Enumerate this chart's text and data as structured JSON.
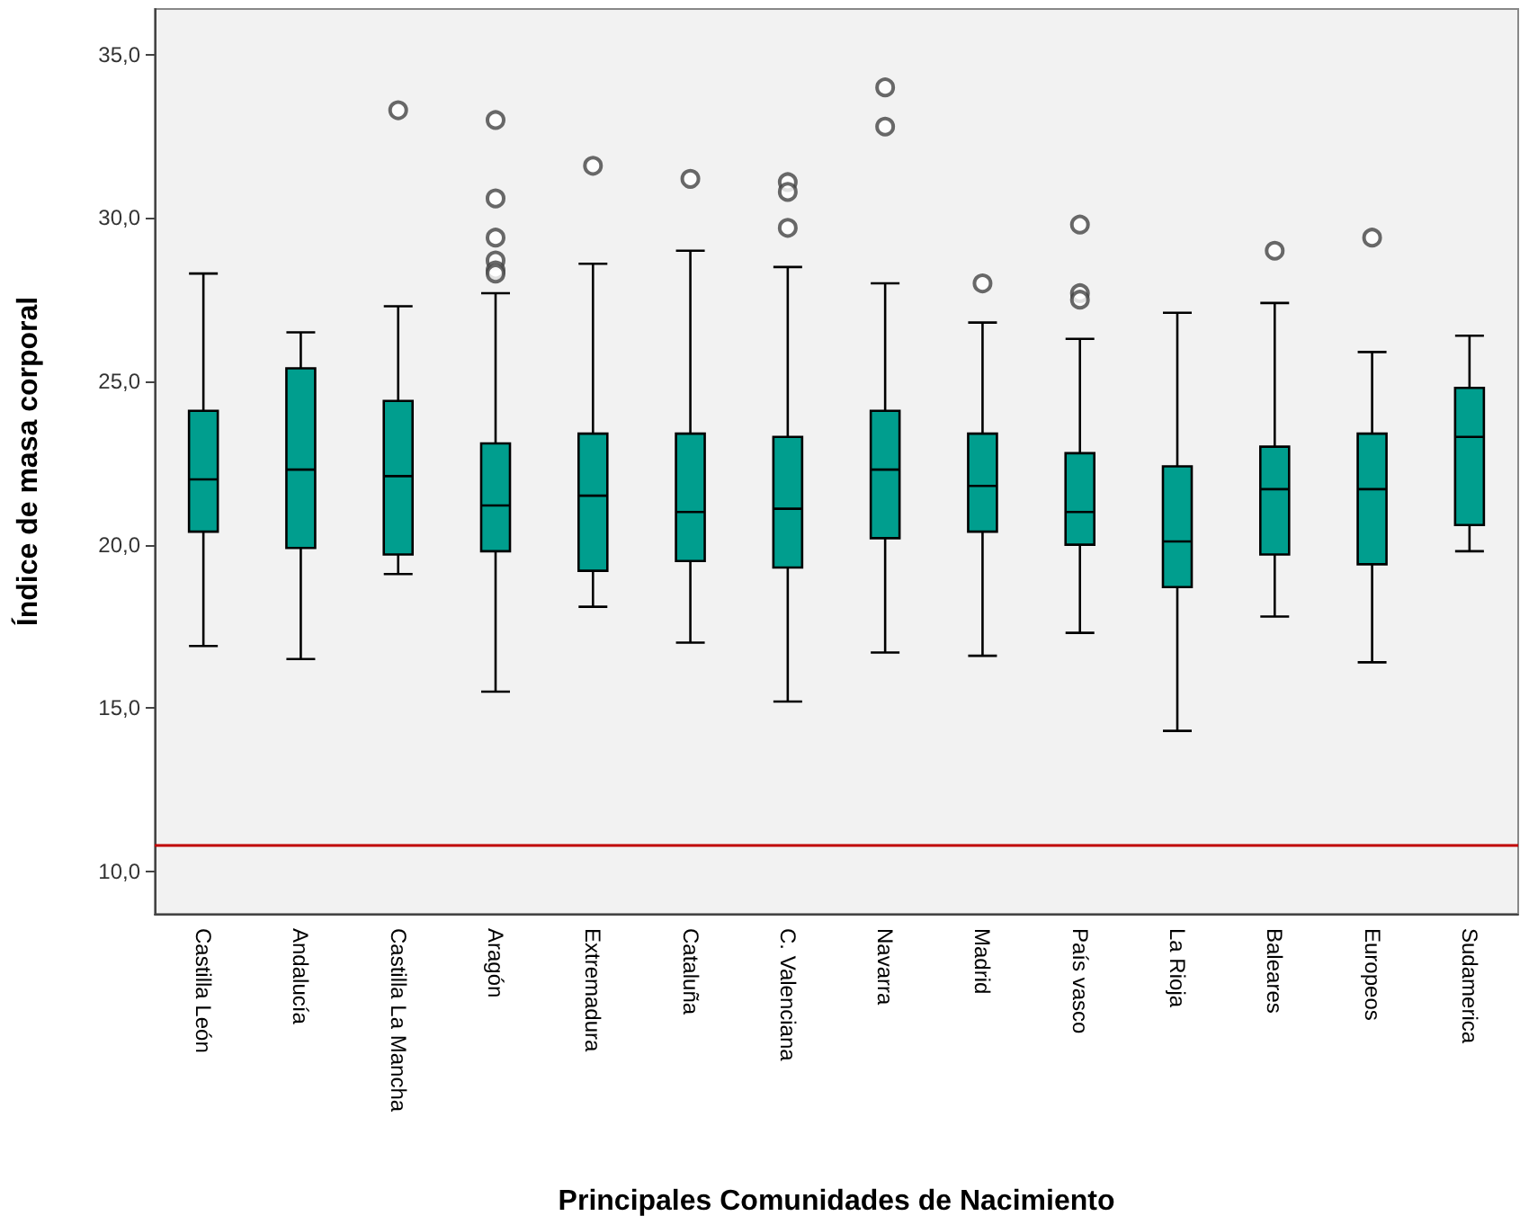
{
  "chart_data": {
    "type": "box",
    "xlabel": "Principales Comunidades de Nacimiento",
    "ylabel": "Índice de masa corporal",
    "categories": [
      "Castilla León",
      "Andalucía",
      "Castilla La Mancha",
      "Aragón",
      "Extremadura",
      "Cataluña",
      "C. Valenciana",
      "Navarra",
      "Madrid",
      "País vasco",
      "La Rioja",
      "Baleares",
      "Europeos",
      "Sudamerica"
    ],
    "color": "#009e8e",
    "boxes": [
      {
        "low": 16.9,
        "q1": 20.4,
        "median": 22.0,
        "q3": 24.1,
        "high": 28.3
      },
      {
        "low": 16.5,
        "q1": 19.9,
        "median": 22.3,
        "q3": 25.4,
        "high": 26.5
      },
      {
        "low": 19.1,
        "q1": 19.7,
        "median": 22.1,
        "q3": 24.4,
        "high": 27.3,
        "outliers": [
          33.3
        ]
      },
      {
        "low": 15.5,
        "q1": 19.8,
        "median": 21.2,
        "q3": 23.1,
        "high": 27.7,
        "outliers": [
          33.0,
          30.6,
          29.4,
          28.7,
          28.4,
          28.3
        ]
      },
      {
        "low": 18.1,
        "q1": 19.2,
        "median": 21.5,
        "q3": 23.4,
        "high": 28.6,
        "outliers": [
          31.6
        ]
      },
      {
        "low": 17.0,
        "q1": 19.5,
        "median": 21.0,
        "q3": 23.4,
        "high": 29.0,
        "outliers": [
          31.2
        ]
      },
      {
        "low": 15.2,
        "q1": 19.3,
        "median": 21.1,
        "q3": 23.3,
        "high": 28.5,
        "outliers": [
          31.1,
          30.8,
          29.7
        ]
      },
      {
        "low": 16.7,
        "q1": 20.2,
        "median": 22.3,
        "q3": 24.1,
        "high": 28.0,
        "outliers": [
          34.0,
          32.8
        ]
      },
      {
        "low": 16.6,
        "q1": 20.4,
        "median": 21.8,
        "q3": 23.4,
        "high": 26.8,
        "outliers": [
          28.0
        ]
      },
      {
        "low": 17.3,
        "q1": 20.0,
        "median": 21.0,
        "q3": 22.8,
        "high": 26.3,
        "outliers": [
          29.8,
          27.7,
          27.5
        ]
      },
      {
        "low": 14.3,
        "q1": 18.7,
        "median": 20.1,
        "q3": 22.4,
        "high": 27.1
      },
      {
        "low": 17.8,
        "q1": 19.7,
        "median": 21.7,
        "q3": 23.0,
        "high": 27.4,
        "outliers": [
          29.0
        ]
      },
      {
        "low": 16.4,
        "q1": 19.4,
        "median": 21.7,
        "q3": 23.4,
        "high": 25.9,
        "outliers": [
          29.4
        ]
      },
      {
        "low": 19.8,
        "q1": 20.6,
        "median": 23.3,
        "q3": 24.8,
        "high": 26.4
      }
    ],
    "ylim": [
      8.7,
      36.4
    ],
    "yticks": [
      {
        "value": 10,
        "label": "10,0"
      },
      {
        "value": 15,
        "label": "15,0"
      },
      {
        "value": 20,
        "label": "20,0"
      },
      {
        "value": 25,
        "label": "25,0"
      },
      {
        "value": 30,
        "label": "30,0"
      },
      {
        "value": 35,
        "label": "35,0"
      }
    ],
    "ref_lines": [
      {
        "axis": "y",
        "value": 10.8,
        "color": "#c00000"
      }
    ],
    "grid": false
  }
}
